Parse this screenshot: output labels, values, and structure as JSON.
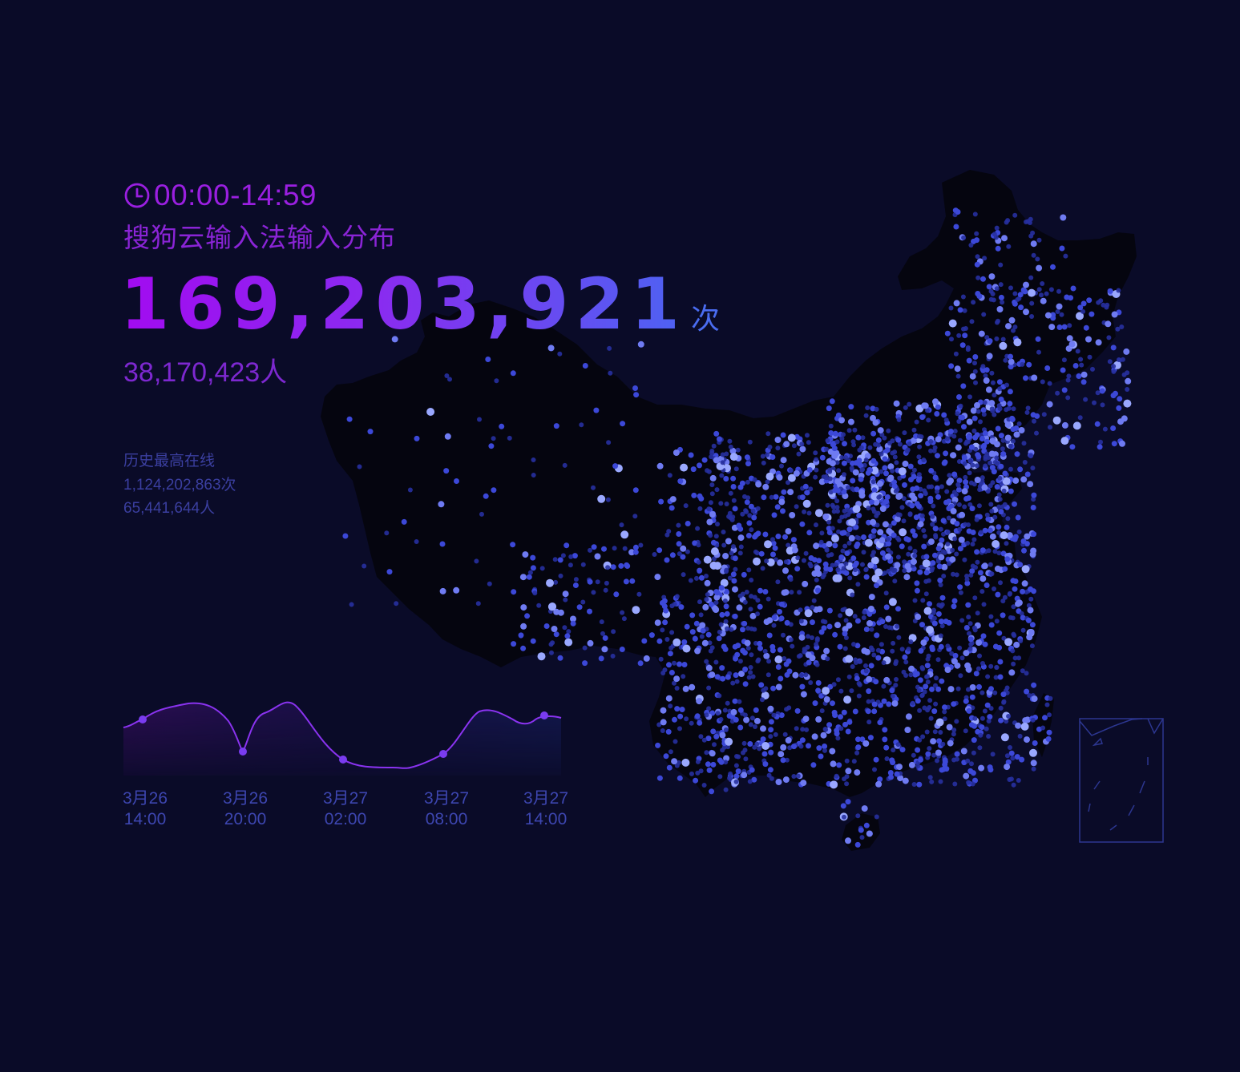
{
  "header": {
    "time_range": "00:00-14:59",
    "clock_icon": "clock-icon",
    "title": "搜狗云输入法输入分布",
    "total_count": "169,203,921",
    "total_count_unit": "次",
    "users": "38,170,423人"
  },
  "history": {
    "label": "历史最高在线",
    "max_count": "1,124,202,863次",
    "max_users": "65,441,644人"
  },
  "trend": {
    "x_labels": [
      {
        "date": "3月26",
        "time": "14:00"
      },
      {
        "date": "3月26",
        "time": "20:00"
      },
      {
        "date": "3月27",
        "time": "02:00"
      },
      {
        "date": "3月27",
        "time": "08:00"
      },
      {
        "date": "3月27",
        "time": "14:00"
      }
    ]
  },
  "colors": {
    "background": "#0a0b28",
    "map_fill": "#05050f",
    "title_purple": "#8a24d6",
    "number_gradient": [
      "#a20bf0",
      "#4d63f2"
    ],
    "dot_dim": "#2730a0",
    "dot_mid": "#3c48d8",
    "dot_bright": "#6f7bf2",
    "dot_brightest": "#9aa8ff",
    "line": "#8a33f0",
    "inset_frame": "#2c3690"
  }
}
